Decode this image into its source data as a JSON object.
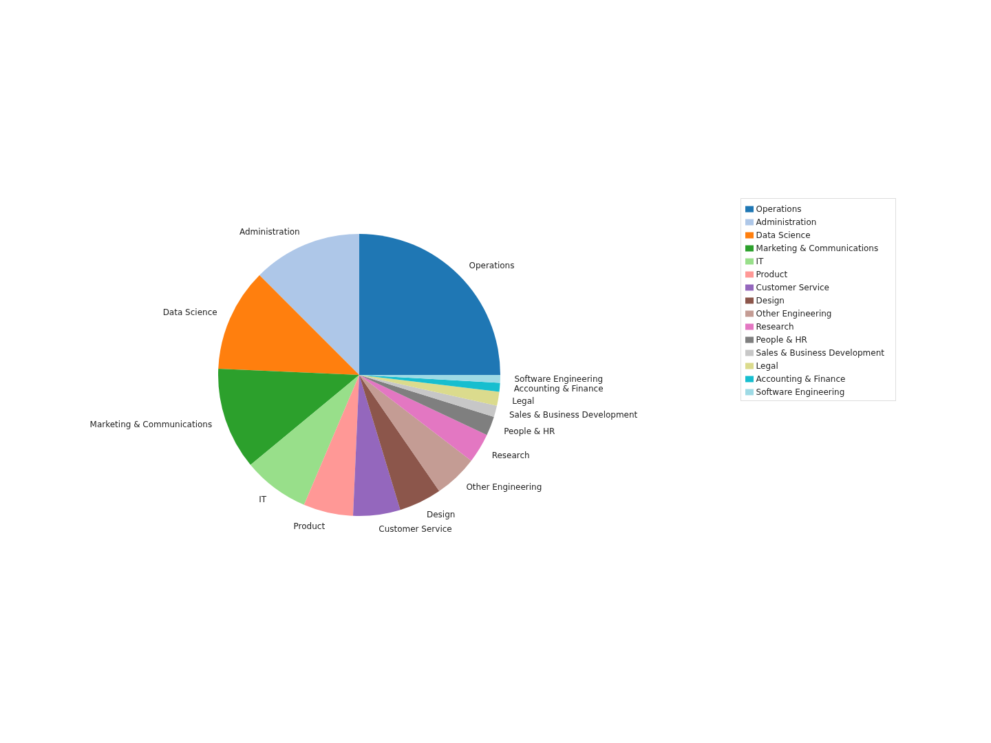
{
  "chart_data": {
    "type": "pie",
    "categories": [
      "Operations",
      "Administration",
      "Data Science",
      "Marketing & Communications",
      "IT",
      "Product",
      "Customer Service",
      "Design",
      "Other Engineering",
      "Research",
      "People & HR",
      "Sales & Business Development",
      "Legal",
      "Accounting & Finance",
      "Software Engineering"
    ],
    "values": [
      25.0,
      12.5,
      11.8,
      11.7,
      7.6,
      5.7,
      5.4,
      4.9,
      5.0,
      3.4,
      2.2,
      1.3,
      1.6,
      1.0,
      0.9
    ],
    "colors": [
      "#1f77b4",
      "#aec7e8",
      "#ff7f0e",
      "#2ca02c",
      "#98df8a",
      "#ff9896",
      "#9467bd",
      "#8c564b",
      "#c49c94",
      "#e377c2",
      "#7f7f7f",
      "#c7c7c7",
      "#dbdb8d",
      "#17becf",
      "#9edae5"
    ],
    "legend": "right"
  }
}
